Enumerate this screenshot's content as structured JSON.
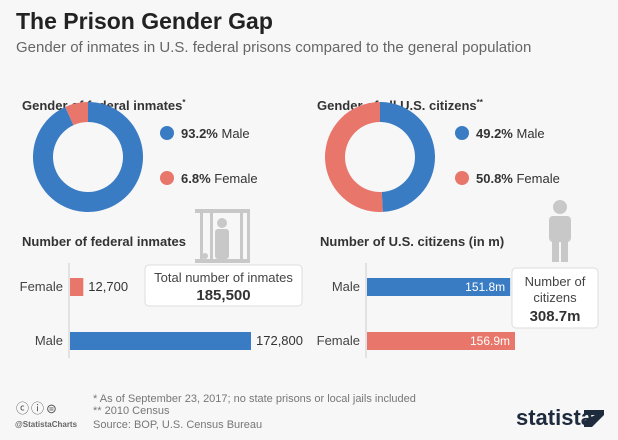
{
  "title": "The Prison Gender Gap",
  "subtitle": "Gender of inmates in U.S. federal prisons compared to the general population",
  "colors": {
    "male": "#3a7cc4",
    "female": "#e8766a",
    "icon": "#c8c8c8"
  },
  "chart_data": [
    {
      "type": "pie",
      "title": "Gender of federal inmates*",
      "donut": true,
      "slices": [
        {
          "label": "Male",
          "value": 93.2,
          "display": "93.2%"
        },
        {
          "label": "Female",
          "value": 6.8,
          "display": "6.8%"
        }
      ]
    },
    {
      "type": "pie",
      "title": "Gender of all U.S. citizens**",
      "donut": true,
      "slices": [
        {
          "label": "Male",
          "value": 49.2,
          "display": "49.2%"
        },
        {
          "label": "Female",
          "value": 50.8,
          "display": "50.8%"
        }
      ]
    },
    {
      "type": "bar",
      "orientation": "horizontal",
      "title": "Number of federal inmates",
      "categories": [
        "Female",
        "Male"
      ],
      "values": [
        12700,
        172800
      ],
      "labels": [
        "12,700",
        "172,800"
      ],
      "callout": {
        "label": "Total number of inmates",
        "value": "185,500"
      }
    },
    {
      "type": "bar",
      "orientation": "horizontal",
      "title": "Number of U.S. citizens (in m)",
      "categories": [
        "Male",
        "Female"
      ],
      "values": [
        151.8,
        156.9
      ],
      "labels": [
        "151.8m",
        "156.9m"
      ],
      "callout": {
        "label": "Number of citizens",
        "value": "308.7m"
      }
    }
  ],
  "footer": {
    "note1": "*   As of September 23, 2017; no state prisons or local jails included",
    "note2": "** 2010 Census",
    "source": "Source: BOP, U.S. Census Bureau",
    "handle": "@StatistaCharts",
    "brand": "statista"
  }
}
